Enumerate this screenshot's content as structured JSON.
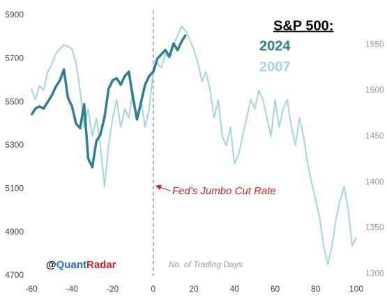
{
  "chart_data": {
    "type": "line",
    "title": "S&P 500:",
    "xlabel": "No. of Trading Days",
    "annotation": "Fed's Jumbo Cut Rate",
    "vline": 0,
    "watermark": [
      "@",
      "Quant",
      "Radar"
    ],
    "xlim": [
      -60,
      100
    ],
    "xticks": [
      -60,
      -40,
      -20,
      0,
      20,
      40,
      60,
      80,
      100
    ],
    "ylim": [
      4700,
      5900
    ],
    "yticks": [
      4700,
      4900,
      5100,
      5300,
      5500,
      5700,
      5900
    ],
    "y2lim": [
      1298,
      1582
    ],
    "y2ticks": [
      1300,
      1350,
      1400,
      1450,
      1500,
      1550
    ],
    "series": [
      {
        "name": "2024",
        "color": "#2f7f93",
        "axis": "y",
        "x": [
          -60,
          -58,
          -56,
          -54,
          -52,
          -50,
          -48,
          -46,
          -44,
          -42,
          -40,
          -38,
          -36,
          -34,
          -32,
          -30,
          -28,
          -26,
          -24,
          -22,
          -20,
          -18,
          -16,
          -14,
          -12,
          -10,
          -8,
          -6,
          -4,
          -2,
          0,
          2,
          4,
          6,
          8,
          10,
          12,
          14,
          16
        ],
        "values": [
          5441,
          5470,
          5480,
          5470,
          5500,
          5530,
          5570,
          5600,
          5650,
          5520,
          5480,
          5400,
          5380,
          5490,
          5240,
          5200,
          5320,
          5350,
          5430,
          5560,
          5600,
          5610,
          5580,
          5620,
          5640,
          5520,
          5420,
          5500,
          5580,
          5620,
          5640,
          5700,
          5720,
          5740,
          5710,
          5770,
          5740,
          5780,
          5810
        ]
      },
      {
        "name": "2007",
        "color": "#a3d5e2",
        "axis": "y2",
        "x": [
          -60,
          -58,
          -56,
          -54,
          -52,
          -50,
          -48,
          -46,
          -44,
          -42,
          -40,
          -38,
          -36,
          -34,
          -32,
          -30,
          -28,
          -26,
          -24,
          -22,
          -20,
          -18,
          -16,
          -14,
          -12,
          -10,
          -8,
          -6,
          -4,
          -2,
          0,
          2,
          4,
          6,
          8,
          10,
          12,
          14,
          16,
          18,
          20,
          22,
          24,
          26,
          28,
          30,
          32,
          34,
          36,
          38,
          40,
          42,
          44,
          46,
          48,
          50,
          52,
          54,
          56,
          58,
          60,
          62,
          64,
          66,
          68,
          70,
          72,
          74,
          76,
          78,
          80,
          82,
          84,
          86,
          88,
          90,
          92,
          94,
          96,
          98,
          100
        ],
        "values": [
          1502,
          1490,
          1505,
          1500,
          1520,
          1528,
          1540,
          1545,
          1550,
          1548,
          1545,
          1530,
          1500,
          1460,
          1480,
          1450,
          1470,
          1440,
          1395,
          1440,
          1470,
          1490,
          1460,
          1480,
          1470,
          1500,
          1470,
          1490,
          1460,
          1480,
          1520,
          1530,
          1525,
          1540,
          1535,
          1550,
          1560,
          1570,
          1565,
          1555,
          1545,
          1530,
          1510,
          1520,
          1500,
          1470,
          1490,
          1450,
          1440,
          1460,
          1420,
          1430,
          1450,
          1470,
          1490,
          1480,
          1500,
          1490,
          1470,
          1450,
          1490,
          1460,
          1480,
          1490,
          1460,
          1440,
          1470,
          1450,
          1420,
          1400,
          1380,
          1360,
          1330,
          1310,
          1330,
          1360,
          1380,
          1395,
          1370,
          1330,
          1340
        ]
      }
    ]
  }
}
